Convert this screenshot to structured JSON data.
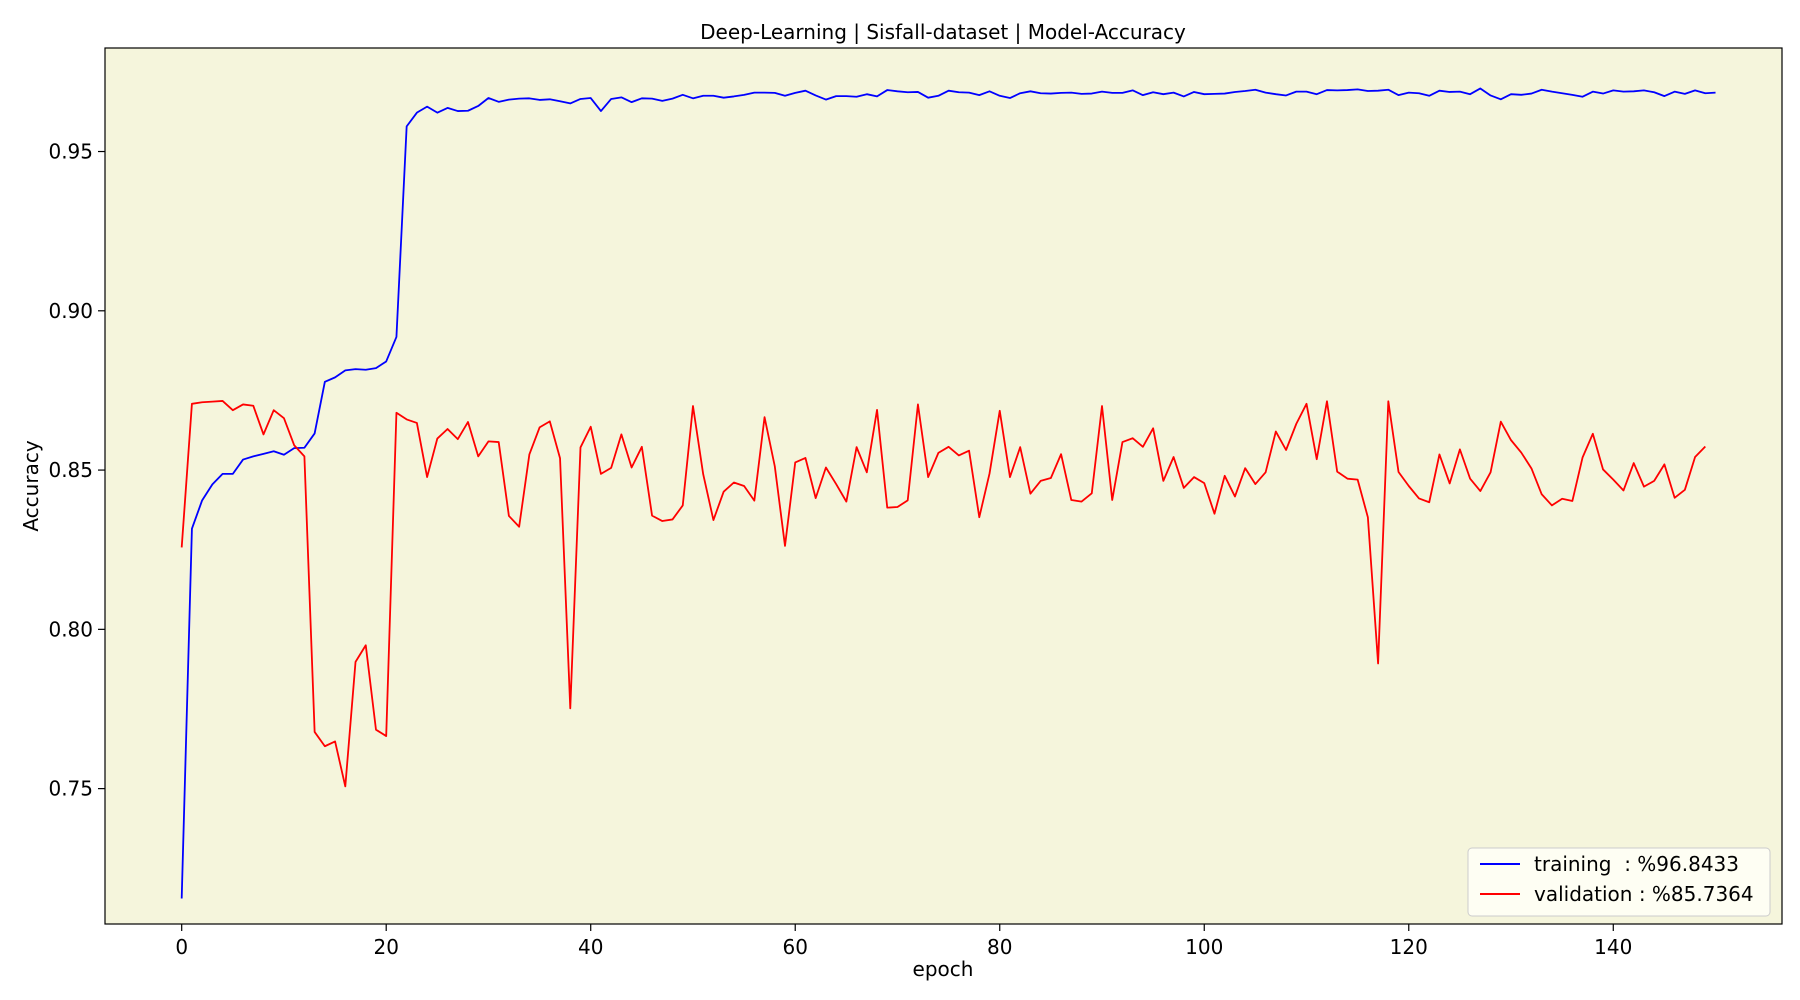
{
  "chart_data": {
    "type": "line",
    "title": "Deep-Learning | Sisfall-dataset  | Model-Accuracy",
    "xlabel": "epoch",
    "ylabel": "Accuracy",
    "xlim": [
      -7.5,
      156.5
    ],
    "ylim": [
      0.7075,
      0.9825
    ],
    "xticks": [
      0,
      20,
      40,
      60,
      80,
      100,
      120,
      140
    ],
    "yticks": [
      0.75,
      0.8,
      0.85,
      0.9,
      0.95
    ],
    "ytick_labels": [
      "0.75",
      "0.80",
      "0.85",
      "0.90",
      "0.95"
    ],
    "plot_background": "#f5f5dc",
    "grid": false,
    "legend_position": "lower-right",
    "series": [
      {
        "name": "training  : %96.8433",
        "color": "#0000ff",
        "values": [
          0.7155,
          0.8316,
          0.8405,
          0.8455,
          0.8488,
          0.8488,
          0.8533,
          0.8543,
          0.8551,
          0.8559,
          0.8548,
          0.8569,
          0.857,
          0.8615,
          0.8777,
          0.8791,
          0.8813,
          0.8817,
          0.8815,
          0.882,
          0.8841,
          0.8918,
          0.9579,
          0.9622,
          0.9641,
          0.9622,
          0.9637,
          0.9627,
          0.9628,
          0.9643,
          0.9668,
          0.9656,
          0.9663,
          0.9666,
          0.9667,
          0.9662,
          0.9664,
          0.9658,
          0.9651,
          0.9665,
          0.9668,
          0.9627,
          0.9665,
          0.967,
          0.9655,
          0.9667,
          0.9666,
          0.9659,
          0.9666,
          0.9678,
          0.9667,
          0.9675,
          0.9675,
          0.9669,
          0.9673,
          0.9678,
          0.9685,
          0.9685,
          0.9684,
          0.9675,
          0.9684,
          0.9691,
          0.9676,
          0.9663,
          0.9674,
          0.9674,
          0.9672,
          0.968,
          0.9673,
          0.9693,
          0.9689,
          0.9686,
          0.9687,
          0.9669,
          0.9675,
          0.9691,
          0.9686,
          0.9685,
          0.9677,
          0.9689,
          0.9675,
          0.9668,
          0.9683,
          0.9689,
          0.9683,
          0.9682,
          0.9684,
          0.9685,
          0.9681,
          0.9682,
          0.9688,
          0.9684,
          0.9684,
          0.9692,
          0.9677,
          0.9686,
          0.968,
          0.9685,
          0.9673,
          0.9687,
          0.968,
          0.9681,
          0.9682,
          0.9687,
          0.969,
          0.9694,
          0.9685,
          0.968,
          0.9676,
          0.9688,
          0.9688,
          0.968,
          0.9693,
          0.9692,
          0.9693,
          0.9695,
          0.969,
          0.9691,
          0.9694,
          0.9677,
          0.9685,
          0.9683,
          0.9675,
          0.9691,
          0.9687,
          0.9688,
          0.968,
          0.9698,
          0.9676,
          0.9664,
          0.968,
          0.9678,
          0.9682,
          0.9694,
          0.9688,
          0.9683,
          0.9678,
          0.9672,
          0.9688,
          0.9682,
          0.9692,
          0.9688,
          0.9689,
          0.9692,
          0.9686,
          0.9674,
          0.9688,
          0.9681,
          0.9692,
          0.9683,
          0.9685
        ]
      },
      {
        "name": "validation : %85.7364",
        "color": "#ff0000",
        "values": [
          0.8257,
          0.8708,
          0.8713,
          0.8715,
          0.8717,
          0.8688,
          0.8706,
          0.8702,
          0.8612,
          0.8688,
          0.8663,
          0.8578,
          0.8543,
          0.7678,
          0.7633,
          0.7648,
          0.7507,
          0.7898,
          0.795,
          0.7685,
          0.7665,
          0.868,
          0.8659,
          0.8648,
          0.8478,
          0.8599,
          0.8629,
          0.8597,
          0.8651,
          0.8543,
          0.859,
          0.8588,
          0.8356,
          0.8322,
          0.8549,
          0.8634,
          0.8653,
          0.8537,
          0.7752,
          0.8571,
          0.8636,
          0.8488,
          0.8507,
          0.8612,
          0.8508,
          0.8573,
          0.8357,
          0.834,
          0.8345,
          0.8389,
          0.8701,
          0.8487,
          0.8343,
          0.8432,
          0.8461,
          0.845,
          0.8404,
          0.8666,
          0.8512,
          0.8262,
          0.8524,
          0.8538,
          0.8412,
          0.8508,
          0.8456,
          0.8401,
          0.8572,
          0.8493,
          0.8689,
          0.8382,
          0.8384,
          0.8405,
          0.8706,
          0.8478,
          0.8554,
          0.8573,
          0.8546,
          0.8561,
          0.8352,
          0.8489,
          0.8686,
          0.8478,
          0.8572,
          0.8426,
          0.8466,
          0.8475,
          0.855,
          0.8406,
          0.8401,
          0.8427,
          0.8701,
          0.8406,
          0.8588,
          0.86,
          0.8573,
          0.8631,
          0.8466,
          0.8541,
          0.8444,
          0.8478,
          0.8459,
          0.8363,
          0.8482,
          0.8417,
          0.8506,
          0.8456,
          0.8493,
          0.8621,
          0.8563,
          0.8645,
          0.8708,
          0.8534,
          0.8716,
          0.8495,
          0.8473,
          0.847,
          0.8352,
          0.7893,
          0.8716,
          0.8494,
          0.845,
          0.8411,
          0.8399,
          0.8549,
          0.8458,
          0.8565,
          0.8473,
          0.8434,
          0.8493,
          0.8652,
          0.8594,
          0.8555,
          0.8505,
          0.8424,
          0.8389,
          0.841,
          0.8403,
          0.854,
          0.8614,
          0.8502,
          0.847,
          0.8436,
          0.8522,
          0.8448,
          0.8466,
          0.8518,
          0.8413,
          0.8438,
          0.8541,
          0.8574
        ]
      }
    ]
  }
}
